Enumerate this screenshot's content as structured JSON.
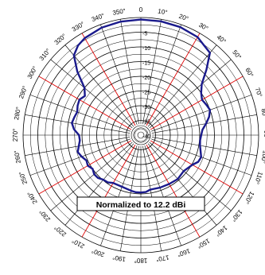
{
  "chart_data": {
    "type": "polar",
    "annotation": "Normalized to 12.2 dBi",
    "angle_labels": [
      {
        "angle": 0,
        "text": "0"
      },
      {
        "angle": 10,
        "text": "10°"
      },
      {
        "angle": 20,
        "text": "20°"
      },
      {
        "angle": 30,
        "text": "30°"
      },
      {
        "angle": 40,
        "text": "40°"
      },
      {
        "angle": 50,
        "text": "50°"
      },
      {
        "angle": 60,
        "text": "60°"
      },
      {
        "angle": 70,
        "text": "70°"
      },
      {
        "angle": 80,
        "text": "80°"
      },
      {
        "angle": 90,
        "text": "90°"
      },
      {
        "angle": 100,
        "text": "100°"
      },
      {
        "angle": 110,
        "text": "110°"
      },
      {
        "angle": 120,
        "text": "120°"
      },
      {
        "angle": 130,
        "text": "130°"
      },
      {
        "angle": 140,
        "text": "140°"
      },
      {
        "angle": 150,
        "text": "150°"
      },
      {
        "angle": 160,
        "text": "160°"
      },
      {
        "angle": 170,
        "text": "170°"
      },
      {
        "angle": 180,
        "text": "180°"
      },
      {
        "angle": 190,
        "text": "190°"
      },
      {
        "angle": 200,
        "text": "200°"
      },
      {
        "angle": 210,
        "text": "210°"
      },
      {
        "angle": 220,
        "text": "220°"
      },
      {
        "angle": 230,
        "text": "230°"
      },
      {
        "angle": 240,
        "text": "240°"
      },
      {
        "angle": 250,
        "text": "250°"
      },
      {
        "angle": 260,
        "text": "260°"
      },
      {
        "angle": 270,
        "text": "270°"
      },
      {
        "angle": 280,
        "text": "280°"
      },
      {
        "angle": 290,
        "text": "290°"
      },
      {
        "angle": 300,
        "text": "300°"
      },
      {
        "angle": 310,
        "text": "310°"
      },
      {
        "angle": 320,
        "text": "320°"
      },
      {
        "angle": 330,
        "text": "330°"
      },
      {
        "angle": 340,
        "text": "340°"
      },
      {
        "angle": 350,
        "text": "350°"
      }
    ],
    "radial_labels": [
      "-5",
      "-10",
      "-15",
      "-20",
      "-25",
      "-30",
      "-35",
      "-40"
    ],
    "rlim": [
      -40,
      0
    ],
    "grid": true,
    "red_spokes_every_deg": 30,
    "series": [
      {
        "color": "#1a1a8c",
        "points": [
          [
            0,
            -0.7
          ],
          [
            10,
            -0.7
          ],
          [
            20,
            -0.9
          ],
          [
            30,
            -1.5
          ],
          [
            40,
            -3.5
          ],
          [
            45,
            -8.5
          ],
          [
            50,
            -13.0
          ],
          [
            55,
            -15.0
          ],
          [
            60,
            -16.0
          ],
          [
            65,
            -15.5
          ],
          [
            70,
            -15.0
          ],
          [
            75,
            -16.0
          ],
          [
            80,
            -17.5
          ],
          [
            85,
            -19.0
          ],
          [
            90,
            -19.5
          ],
          [
            95,
            -19.8
          ],
          [
            100,
            -19.6
          ],
          [
            105,
            -19.0
          ],
          [
            110,
            -18.2
          ],
          [
            115,
            -18.5
          ],
          [
            120,
            -19.8
          ],
          [
            130,
            -21.0
          ],
          [
            140,
            -20.5
          ],
          [
            150,
            -20.8
          ],
          [
            160,
            -21.0
          ],
          [
            170,
            -21.2
          ],
          [
            175,
            -20.6
          ],
          [
            180,
            -20.5
          ],
          [
            185,
            -20.5
          ],
          [
            190,
            -20.8
          ],
          [
            200,
            -21.3
          ],
          [
            210,
            -21.2
          ],
          [
            215,
            -20.4
          ],
          [
            220,
            -20.2
          ],
          [
            225,
            -19.4
          ],
          [
            230,
            -19.3
          ],
          [
            235,
            -20.0
          ],
          [
            240,
            -19.2
          ],
          [
            245,
            -19.6
          ],
          [
            250,
            -18.6
          ],
          [
            255,
            -17.8
          ],
          [
            260,
            -18.6
          ],
          [
            265,
            -19.2
          ],
          [
            270,
            -19.0
          ],
          [
            275,
            -17.2
          ],
          [
            280,
            -16.2
          ],
          [
            285,
            -16.6
          ],
          [
            290,
            -17.0
          ],
          [
            295,
            -16.3
          ],
          [
            300,
            -15.9
          ],
          [
            305,
            -16.8
          ],
          [
            310,
            -15.0
          ],
          [
            315,
            -9.5
          ],
          [
            320,
            -4.6
          ],
          [
            325,
            -2.8
          ],
          [
            330,
            -1.9
          ],
          [
            340,
            -1.1
          ],
          [
            350,
            -0.8
          ],
          [
            360,
            -0.7
          ]
        ]
      }
    ]
  }
}
